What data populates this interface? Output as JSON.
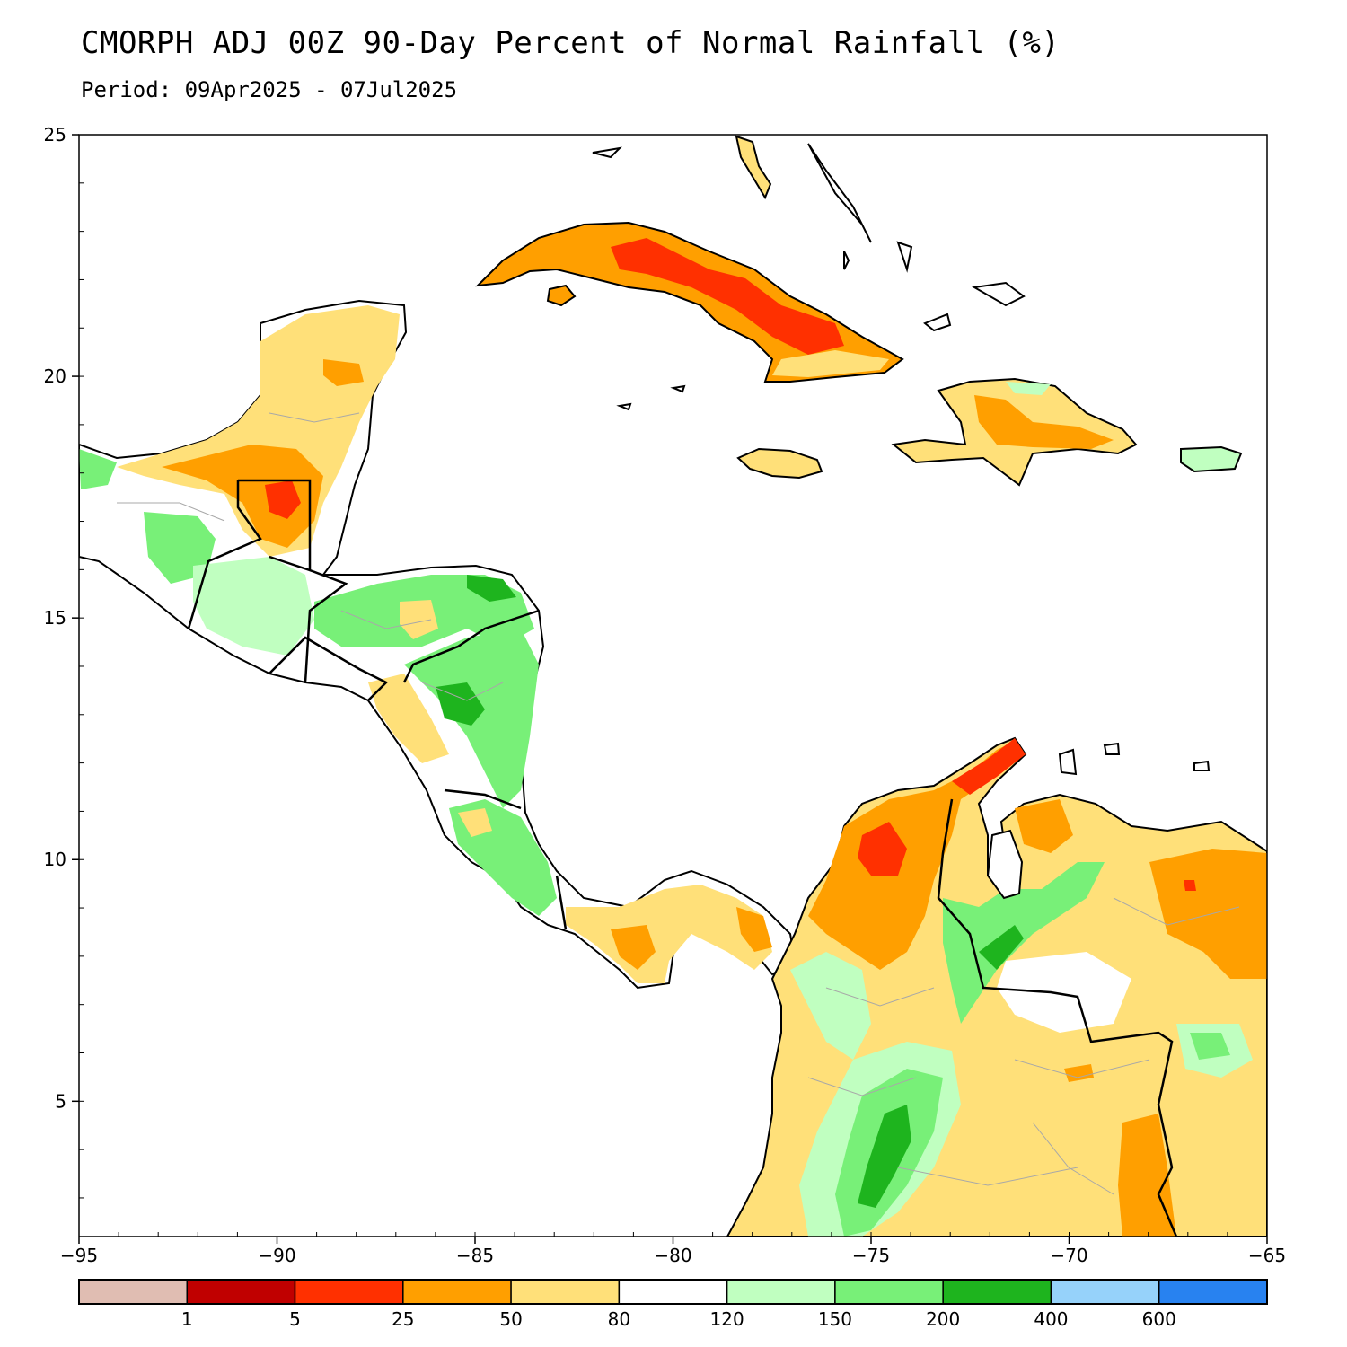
{
  "title": "CMORPH ADJ 00Z 90-Day Percent of Normal Rainfall (%)",
  "subtitle": "Period: 09Apr2025 - 07Jul2025",
  "map": {
    "lon_range": [
      -95,
      -65
    ],
    "lat_range": [
      2.2,
      25
    ],
    "x_ticks": [
      -95,
      -90,
      -85,
      -80,
      -75,
      -70,
      -65
    ],
    "x_tick_labels": [
      "−95",
      "−90",
      "−85",
      "−80",
      "−75",
      "−70",
      "−65"
    ],
    "y_ticks": [
      5,
      10,
      15,
      20,
      25
    ],
    "y_tick_labels": [
      "5",
      "10",
      "15",
      "20",
      "25"
    ]
  },
  "colors": {
    "c0": "#e0bdb2",
    "c1": "#c00000",
    "c5": "#ff3000",
    "c25": "#ff9f00",
    "c50": "#ffe079",
    "c80": "#ffffff",
    "c120": "#c0ffc0",
    "c150": "#78f078",
    "c200": "#1eb41e",
    "c400": "#96d2fa",
    "c600": "#2882f0"
  },
  "colorbar": {
    "colors": [
      "#e0bdb2",
      "#c00000",
      "#ff3000",
      "#ff9f00",
      "#ffe079",
      "#ffffff",
      "#c0ffc0",
      "#78f078",
      "#1eb41e",
      "#96d2fa",
      "#2882f0"
    ],
    "labels": [
      "1",
      "5",
      "25",
      "50",
      "80",
      "120",
      "150",
      "200",
      "400",
      "600"
    ]
  }
}
